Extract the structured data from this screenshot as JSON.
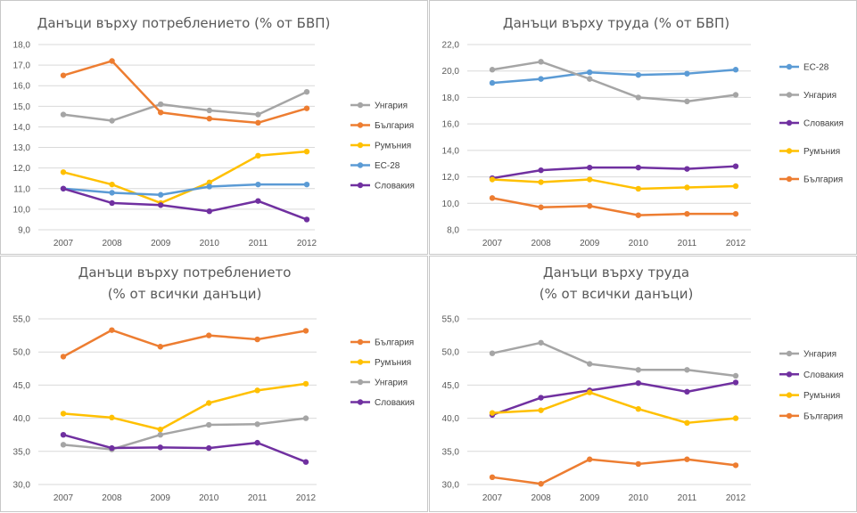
{
  "chart_data": [
    {
      "type": "line",
      "title": [
        "Данъци върху потреблението (% от БВП)"
      ],
      "categories": [
        "2007",
        "2008",
        "2009",
        "2010",
        "2011",
        "2012"
      ],
      "ylim": [
        9.0,
        18.0
      ],
      "yticks": [
        "9,0",
        "10,0",
        "11,0",
        "12,0",
        "13,0",
        "14,0",
        "15,0",
        "16,0",
        "17,0",
        "18,0"
      ],
      "ytick_values": [
        9,
        10,
        11,
        12,
        13,
        14,
        15,
        16,
        17,
        18
      ],
      "grid": true,
      "legend_position": "right",
      "series": [
        {
          "name": "Унгария",
          "color": "#a5a5a5",
          "values": [
            14.6,
            14.3,
            15.1,
            14.8,
            14.6,
            15.7
          ]
        },
        {
          "name": "България",
          "color": "#ed7d31",
          "values": [
            16.5,
            17.2,
            14.7,
            14.4,
            14.2,
            14.9
          ]
        },
        {
          "name": "Румъния",
          "color": "#ffc000",
          "values": [
            11.8,
            11.2,
            10.3,
            11.3,
            12.6,
            12.8
          ]
        },
        {
          "name": "ЕС-28",
          "color": "#5b9bd5",
          "values": [
            11.0,
            10.8,
            10.7,
            11.1,
            11.2,
            11.2
          ]
        },
        {
          "name": "Словакия",
          "color": "#7030a0",
          "values": [
            11.0,
            10.3,
            10.2,
            9.9,
            10.4,
            9.5
          ]
        }
      ]
    },
    {
      "type": "line",
      "title": [
        "Данъци върху труда (% от БВП)"
      ],
      "categories": [
        "2007",
        "2008",
        "2009",
        "2010",
        "2011",
        "2012"
      ],
      "ylim": [
        8.0,
        22.0
      ],
      "yticks": [
        "8,0",
        "10,0",
        "12,0",
        "14,0",
        "16,0",
        "18,0",
        "20,0",
        "22,0"
      ],
      "ytick_values": [
        8,
        10,
        12,
        14,
        16,
        18,
        20,
        22
      ],
      "grid": true,
      "legend_position": "right",
      "series": [
        {
          "name": "ЕС-28",
          "color": "#5b9bd5",
          "values": [
            19.1,
            19.4,
            19.9,
            19.7,
            19.8,
            20.1
          ]
        },
        {
          "name": "Унгария",
          "color": "#a5a5a5",
          "values": [
            20.1,
            20.7,
            19.4,
            18.0,
            17.7,
            18.2
          ]
        },
        {
          "name": "Словакия",
          "color": "#7030a0",
          "values": [
            11.9,
            12.5,
            12.7,
            12.7,
            12.6,
            12.8
          ]
        },
        {
          "name": "Румъния",
          "color": "#ffc000",
          "values": [
            11.8,
            11.6,
            11.8,
            11.1,
            11.2,
            11.3
          ]
        },
        {
          "name": "България",
          "color": "#ed7d31",
          "values": [
            10.4,
            9.7,
            9.8,
            9.1,
            9.2,
            9.2
          ]
        }
      ]
    },
    {
      "type": "line",
      "title": [
        "Данъци върху потреблението",
        "(% от всички данъци)"
      ],
      "categories": [
        "2007",
        "2008",
        "2009",
        "2010",
        "2011",
        "2012"
      ],
      "ylim": [
        30.0,
        55.0
      ],
      "yticks": [
        "30,0",
        "35,0",
        "40,0",
        "45,0",
        "50,0",
        "55,0"
      ],
      "ytick_values": [
        30,
        35,
        40,
        45,
        50,
        55
      ],
      "grid": true,
      "legend_position": "right",
      "series": [
        {
          "name": "България",
          "color": "#ed7d31",
          "values": [
            49.3,
            53.3,
            50.8,
            52.5,
            51.9,
            53.2
          ]
        },
        {
          "name": "Румъния",
          "color": "#ffc000",
          "values": [
            40.7,
            40.1,
            38.3,
            42.3,
            44.2,
            45.2
          ]
        },
        {
          "name": "Унгария",
          "color": "#a5a5a5",
          "values": [
            36.0,
            35.3,
            37.5,
            39.0,
            39.1,
            40.0
          ]
        },
        {
          "name": "Словакия",
          "color": "#7030a0",
          "values": [
            37.5,
            35.5,
            35.6,
            35.5,
            36.3,
            33.4
          ]
        }
      ]
    },
    {
      "type": "line",
      "title": [
        "Данъци върху труда",
        "(% от всички данъци)"
      ],
      "categories": [
        "2007",
        "2008",
        "2009",
        "2010",
        "2011",
        "2012"
      ],
      "ylim": [
        30.0,
        55.0
      ],
      "yticks": [
        "30,0",
        "35,0",
        "40,0",
        "45,0",
        "50,0",
        "55,0"
      ],
      "ytick_values": [
        30,
        35,
        40,
        45,
        50,
        55
      ],
      "grid": true,
      "legend_position": "right",
      "series": [
        {
          "name": "Унгария",
          "color": "#a5a5a5",
          "values": [
            49.8,
            51.4,
            48.2,
            47.3,
            47.3,
            46.4
          ]
        },
        {
          "name": "Словакия",
          "color": "#7030a0",
          "values": [
            40.5,
            43.1,
            44.2,
            45.3,
            44.0,
            45.4
          ]
        },
        {
          "name": "Румъния",
          "color": "#ffc000",
          "values": [
            40.8,
            41.2,
            43.9,
            41.4,
            39.3,
            40.0
          ]
        },
        {
          "name": "България",
          "color": "#ed7d31",
          "values": [
            31.1,
            30.1,
            33.8,
            33.1,
            33.8,
            32.9
          ]
        }
      ]
    }
  ]
}
